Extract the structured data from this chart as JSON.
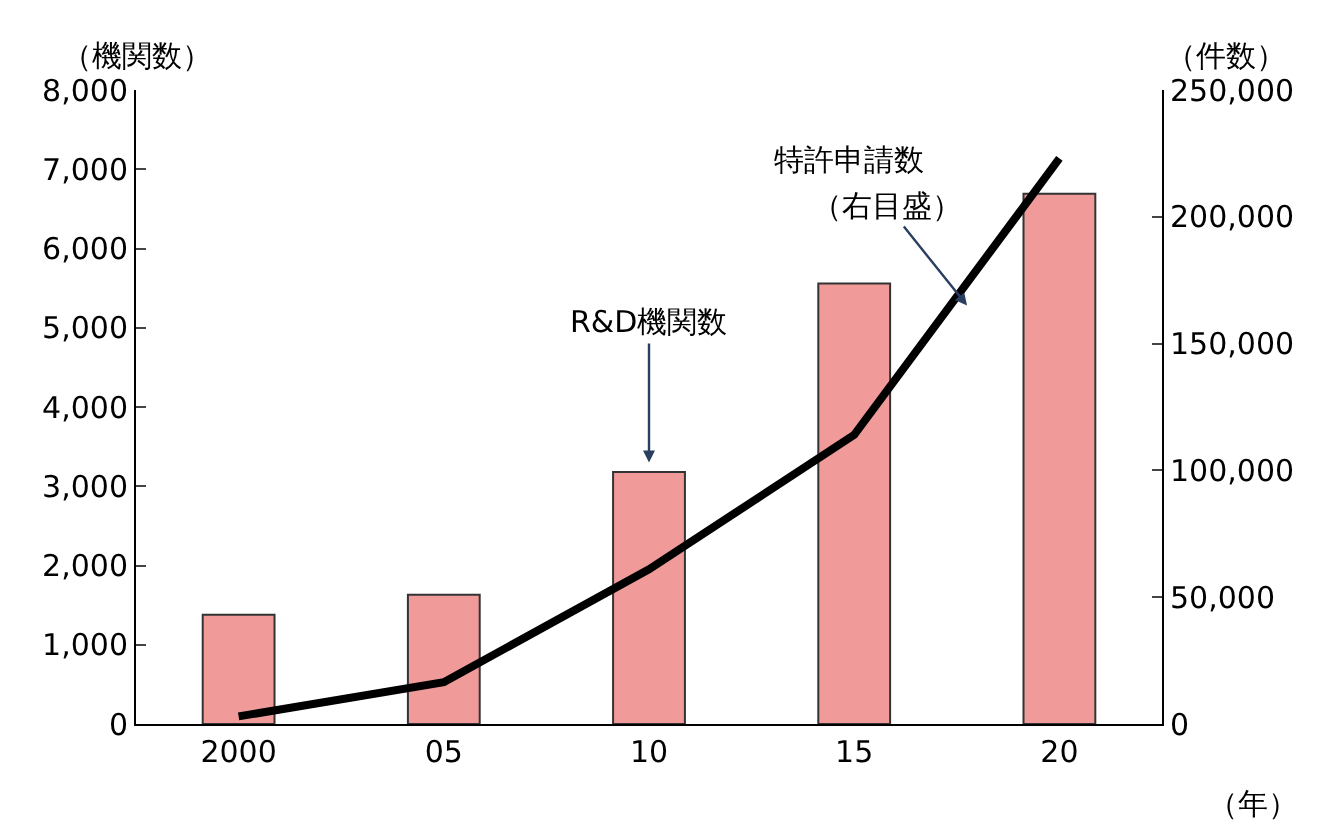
{
  "chart_data": {
    "type": "bar",
    "xlabel": "（年）",
    "ylabel": "（機関数）",
    "y2label": "（件数）",
    "categories": [
      "2000",
      "05",
      "10",
      "15",
      "20"
    ],
    "series": [
      {
        "color": "#f09a9a",
        "values": [
          1380,
          1630,
          3180,
          5560,
          6690
        ]
      },
      {
        "type": "line",
        "axis": "y2",
        "color": "#000000",
        "values": [
          3000,
          16500,
          61000,
          114000,
          223000
        ]
      }
    ],
    "ylim": [
      0,
      8000
    ],
    "yticks": [
      {
        "value": 0,
        "label": "0"
      },
      {
        "value": 1000,
        "label": "1,000"
      },
      {
        "value": 2000,
        "label": "2,000"
      },
      {
        "value": 3000,
        "label": "3,000"
      },
      {
        "value": 4000,
        "label": "4,000"
      },
      {
        "value": 5000,
        "label": "5,000"
      },
      {
        "value": 6000,
        "label": "6,000"
      },
      {
        "value": 7000,
        "label": "7,000"
      },
      {
        "value": 8000,
        "label": "8,000"
      }
    ],
    "y2lim": [
      0,
      250000
    ],
    "y2ticks": [
      {
        "value": 0,
        "label": "0"
      },
      {
        "value": 50000,
        "label": "50,000"
      },
      {
        "value": 100000,
        "label": "100,000"
      },
      {
        "value": 150000,
        "label": "150,000"
      },
      {
        "value": 200000,
        "label": "200,000"
      },
      {
        "value": 250000,
        "label": "250,000"
      }
    ],
    "annotations": [
      {
        "text": "R&D機関数",
        "x": "10",
        "y": 3200
      },
      "特許申請数",
      "（右目盛）"
    ],
    "marker": "none",
    "line_style": "solid"
  }
}
